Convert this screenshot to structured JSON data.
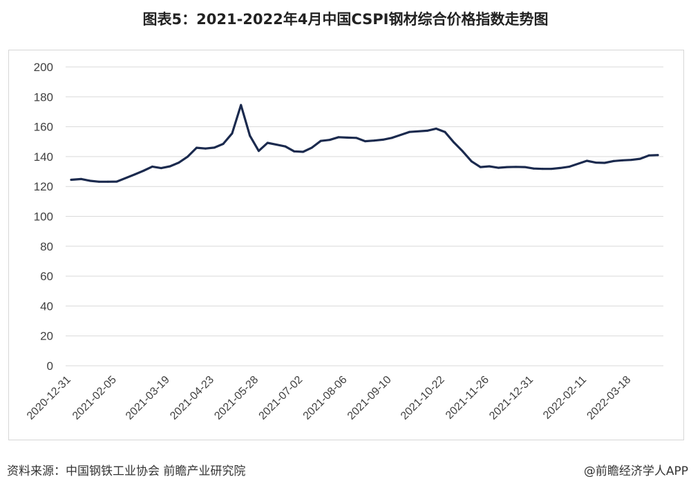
{
  "title": "图表5：2021-2022年4月中国CSPI钢材综合价格指数走势图",
  "footer": {
    "source": "资料来源：中国钢铁工业协会 前瞻产业研究院",
    "brand": "@前瞻经济学人APP"
  },
  "colors": {
    "line": "#1b2a4e",
    "grid": "#d9d9d9",
    "axis_text": "#404040"
  },
  "chart_data": {
    "type": "line",
    "title": "图表5：2021-2022年4月中国CSPI钢材综合价格指数走势图",
    "xlabel": "",
    "ylabel": "",
    "ylim": [
      0,
      200
    ],
    "yticks": [
      0,
      20,
      40,
      60,
      80,
      100,
      120,
      140,
      160,
      180,
      200
    ],
    "grid": true,
    "legend": "none",
    "x_tick_labels": [
      "2020-12-31",
      "2021-02-05",
      "2021-03-19",
      "2021-04-23",
      "2021-05-28",
      "2021-07-02",
      "2021-08-06",
      "2021-09-10",
      "2021-10-22",
      "2021-11-26",
      "2021-12-31",
      "2022-02-11",
      "2022-03-18"
    ],
    "series": [
      {
        "x": [
          "2020-12-31",
          "2021-01-08",
          "2021-01-15",
          "2021-01-22",
          "2021-01-29",
          "2021-02-05",
          "2021-02-19",
          "2021-02-26",
          "2021-03-05",
          "2021-03-12",
          "2021-03-19",
          "2021-03-26",
          "2021-04-02",
          "2021-04-09",
          "2021-04-16",
          "2021-04-23",
          "2021-04-30",
          "2021-05-07",
          "2021-05-14",
          "2021-05-21",
          "2021-05-28",
          "2021-06-04",
          "2021-06-11",
          "2021-06-18",
          "2021-06-25",
          "2021-07-02",
          "2021-07-09",
          "2021-07-16",
          "2021-07-23",
          "2021-07-30",
          "2021-08-06",
          "2021-08-13",
          "2021-08-20",
          "2021-08-27",
          "2021-09-03",
          "2021-09-10",
          "2021-09-17",
          "2021-09-24",
          "2021-10-08",
          "2021-10-15",
          "2021-10-22",
          "2021-10-29",
          "2021-11-05",
          "2021-11-12",
          "2021-11-19",
          "2021-11-26",
          "2021-12-03",
          "2021-12-10",
          "2021-12-17",
          "2021-12-24",
          "2021-12-31",
          "2022-01-07",
          "2022-01-14",
          "2022-01-21",
          "2022-01-28",
          "2022-02-11",
          "2022-02-18",
          "2022-02-25",
          "2022-03-04",
          "2022-03-11",
          "2022-03-18",
          "2022-03-25",
          "2022-04-01",
          "2022-04-08"
        ],
        "values": [
          124.5,
          125,
          123.8,
          123.2,
          123.2,
          123.3,
          128,
          130.5,
          133.3,
          132.3,
          133.5,
          136,
          140,
          145.9,
          145.4,
          146,
          148.5,
          155.5,
          174.5,
          154,
          143.8,
          149.2,
          148,
          146.8,
          143.5,
          143.2,
          146,
          150.5,
          151.2,
          153,
          152.7,
          152.5,
          150.3,
          150.7,
          151.3,
          152.5,
          154.5,
          156.5,
          157.3,
          158.7,
          156.5,
          149.5,
          143.5,
          136.8,
          133,
          133.5,
          132.5,
          133,
          133.1,
          133,
          132,
          131.8,
          131.8,
          132.4,
          133.2,
          137.2,
          136,
          135.8,
          137,
          137.5,
          137.8,
          138.5,
          140.8,
          141
        ]
      }
    ]
  }
}
